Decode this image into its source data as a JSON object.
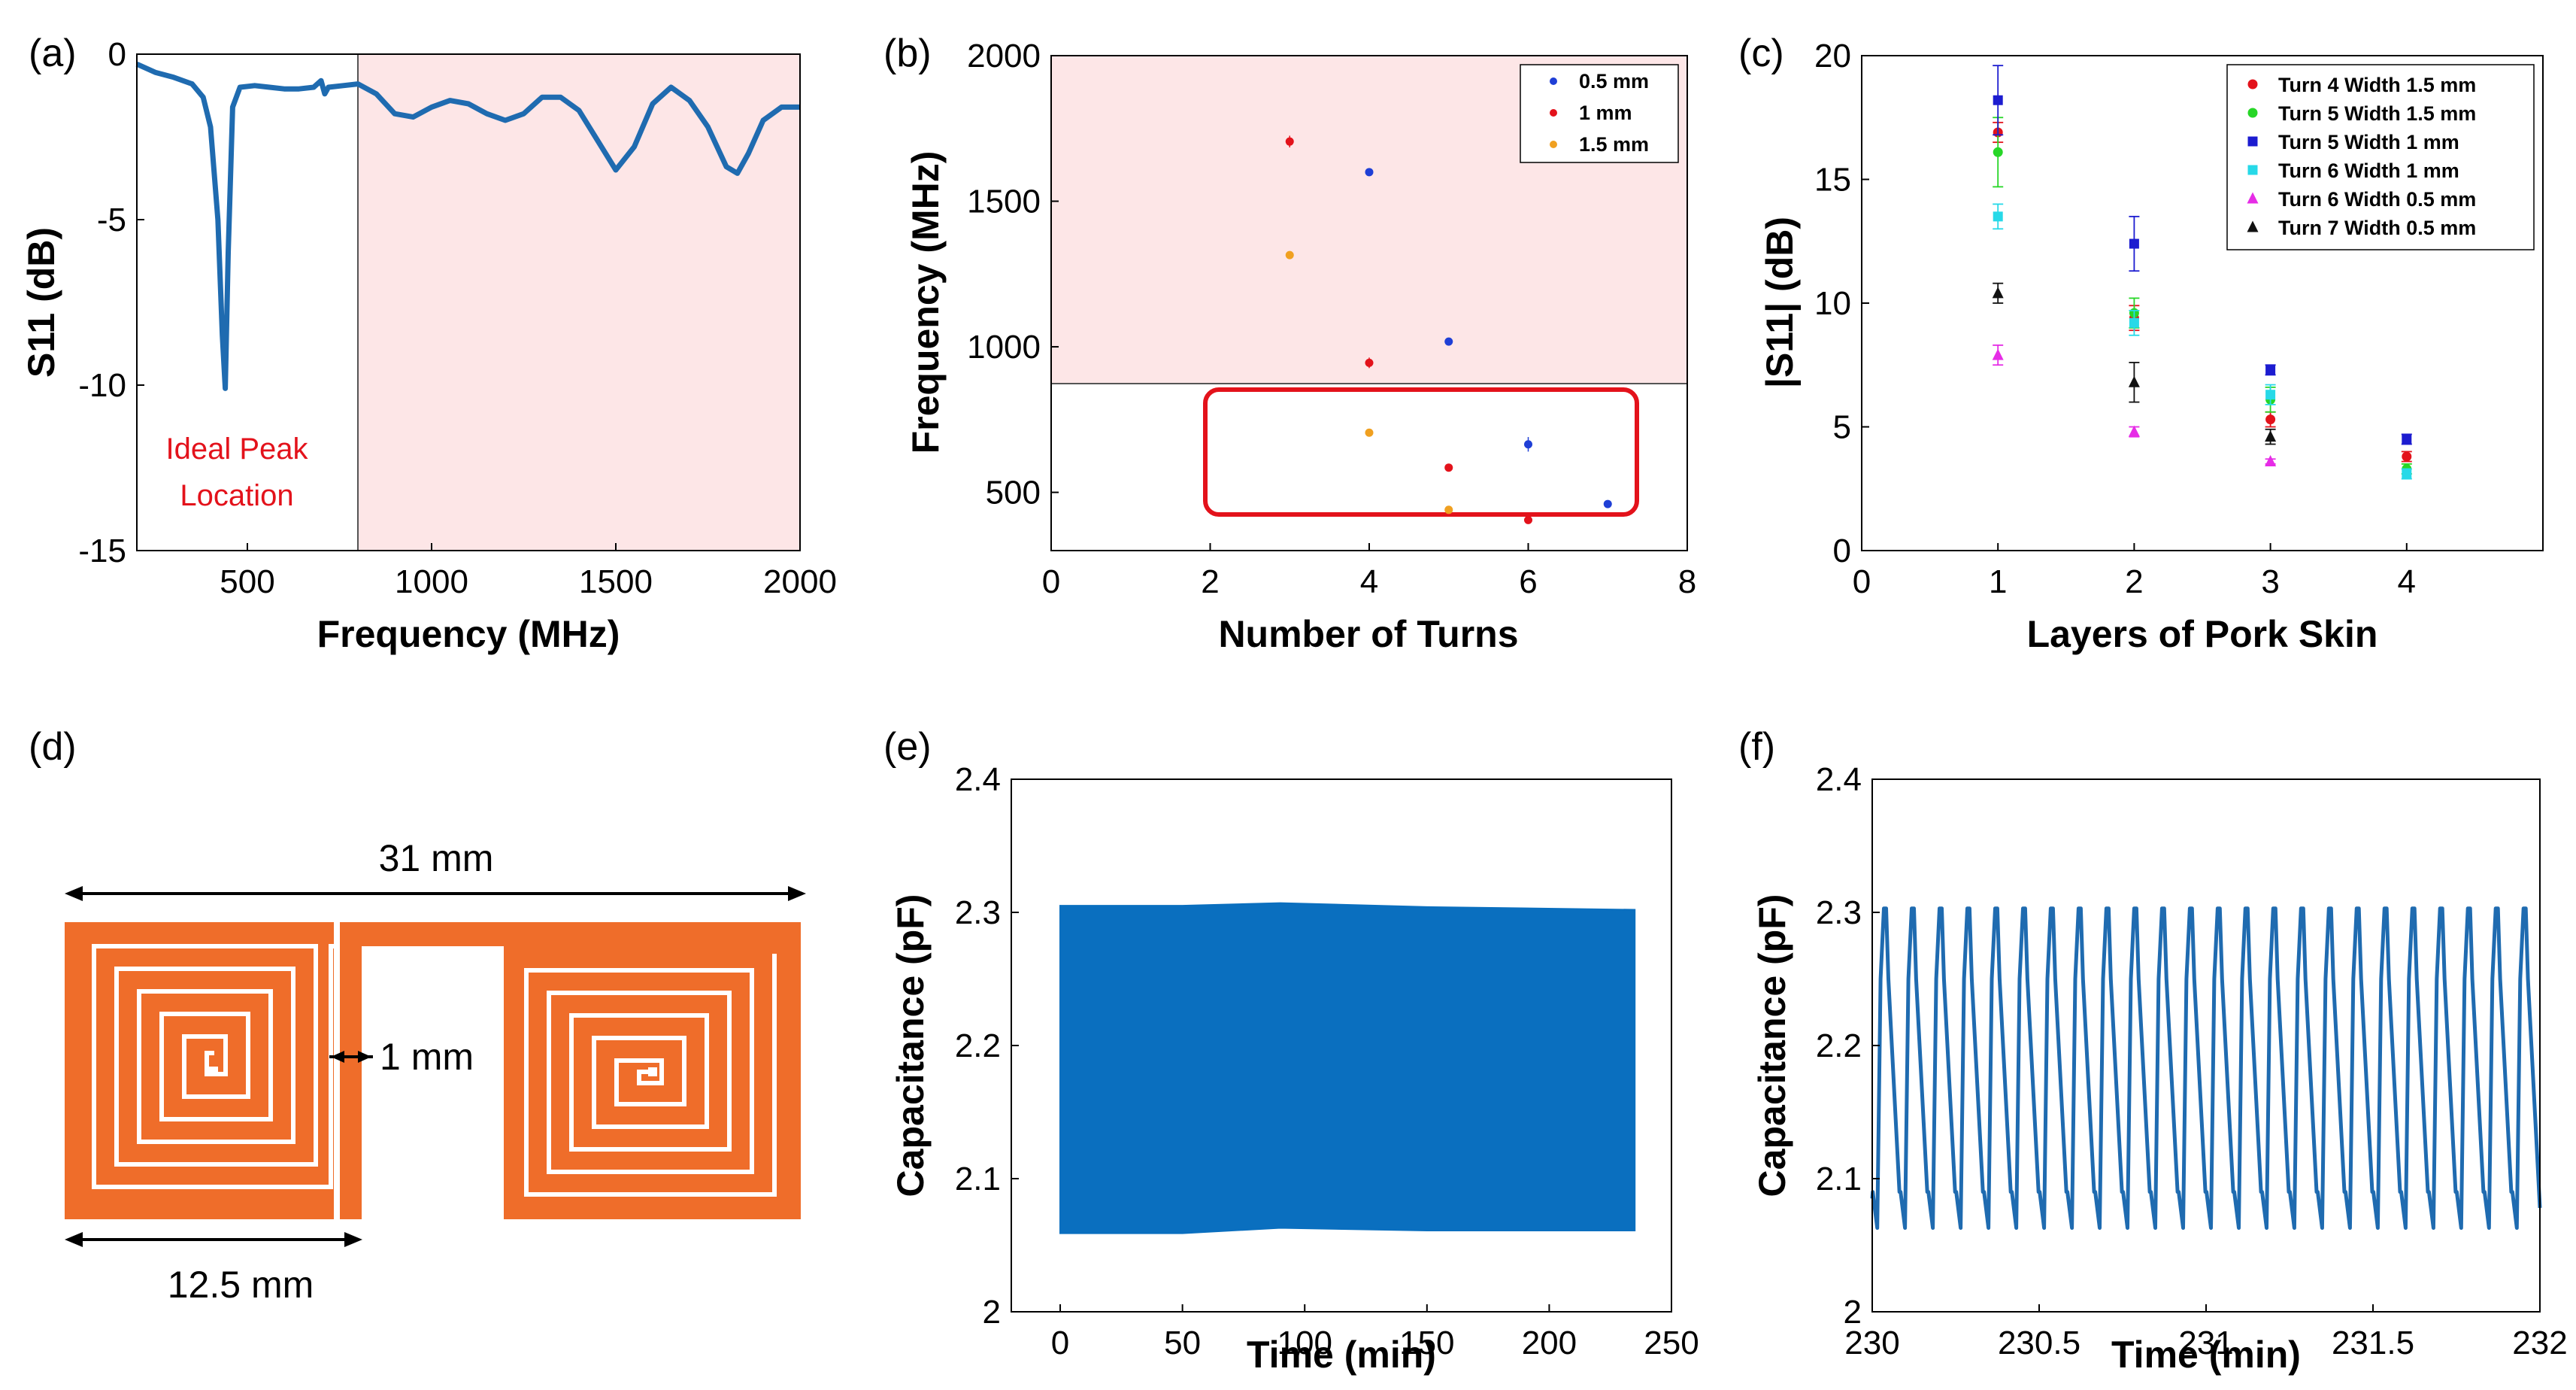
{
  "colors": {
    "axis": "#000000",
    "shade": "#fde6e7",
    "blue_line": "#1f6bb0",
    "dense_blue": "#0a6fbf",
    "highlight": "#e3121b",
    "orange": "#ef6d2a",
    "gap": "#ffffff"
  },
  "chart_data": [
    {
      "panel": "(a)",
      "type": "line",
      "xlabel": "Frequency (MHz)",
      "ylabel": "S11 (dB)",
      "xlim": [
        200,
        2000
      ],
      "ylim": [
        -15,
        0
      ],
      "xticks": [
        500,
        1000,
        1500,
        2000
      ],
      "yticks": [
        0,
        -5,
        -10,
        -15
      ],
      "shaded_region": {
        "x": [
          800,
          2000
        ]
      },
      "annotation": [
        "Ideal Peak",
        "Location"
      ],
      "series": [
        {
          "name": "S11",
          "x": [
            200,
            250,
            300,
            350,
            380,
            400,
            420,
            432,
            440,
            448,
            460,
            480,
            520,
            560,
            600,
            640,
            680,
            700,
            710,
            720,
            760,
            800,
            850,
            900,
            950,
            1000,
            1050,
            1100,
            1150,
            1200,
            1250,
            1300,
            1350,
            1400,
            1450,
            1500,
            1550,
            1600,
            1650,
            1700,
            1750,
            1800,
            1830,
            1860,
            1900,
            1950,
            2000
          ],
          "y": [
            -0.3,
            -0.55,
            -0.7,
            -0.9,
            -1.3,
            -2.2,
            -5.0,
            -8.5,
            -10.1,
            -6.0,
            -1.6,
            -1.0,
            -0.95,
            -1.0,
            -1.05,
            -1.05,
            -1.0,
            -0.8,
            -1.2,
            -1.0,
            -0.95,
            -0.9,
            -1.2,
            -1.8,
            -1.9,
            -1.6,
            -1.4,
            -1.5,
            -1.8,
            -2.0,
            -1.8,
            -1.3,
            -1.3,
            -1.7,
            -2.6,
            -3.5,
            -2.8,
            -1.5,
            -1.0,
            -1.4,
            -2.2,
            -3.4,
            -3.6,
            -3.0,
            -2.0,
            -1.6,
            -1.6
          ]
        }
      ]
    },
    {
      "panel": "(b)",
      "type": "scatter",
      "xlabel": "Number of Turns",
      "ylabel": "Frequency (MHz)",
      "xlim": [
        0,
        8
      ],
      "ylim": [
        300,
        2000
      ],
      "xticks": [
        0,
        2,
        4,
        6,
        8
      ],
      "yticks": [
        500,
        1000,
        1500,
        2000
      ],
      "shaded_region": {
        "y": [
          800,
          2000
        ]
      },
      "highlight_box": {
        "x": [
          2,
          7.4
        ],
        "y": [
          330,
          790
        ]
      },
      "legend_position": "top-right",
      "series": [
        {
          "name": "0.5 mm",
          "color": "#1f3fd6",
          "x": [
            4,
            5,
            6,
            7
          ],
          "y": [
            1600,
            1018,
            665,
            460
          ],
          "err": [
            12,
            10,
            25,
            10
          ]
        },
        {
          "name": "1 mm",
          "color": "#e3121b",
          "x": [
            3,
            4,
            5,
            6
          ],
          "y": [
            1705,
            945,
            585,
            405
          ],
          "err": [
            20,
            18,
            12,
            10
          ]
        },
        {
          "name": "1.5 mm",
          "color": "#f0a020",
          "x": [
            3,
            4,
            5
          ],
          "y": [
            1315,
            705,
            440
          ],
          "err": [
            10,
            10,
            10
          ]
        }
      ]
    },
    {
      "panel": "(c)",
      "type": "scatter",
      "xlabel": "Layers of Pork Skin",
      "ylabel": "|S11| (dB)",
      "xlim": [
        0,
        5
      ],
      "ylim": [
        0,
        20
      ],
      "xticks": [
        0,
        1,
        2,
        3,
        4
      ],
      "yticks": [
        0,
        5,
        10,
        15,
        20
      ],
      "legend_position": "top-right",
      "series": [
        {
          "name": "Turn 4 Width 1.5 mm",
          "color": "#e3121b",
          "marker": "circle",
          "x": [
            1,
            2,
            3,
            4
          ],
          "y": [
            16.9,
            9.4,
            5.3,
            3.8
          ],
          "err": [
            0.4,
            0.5,
            0.3,
            0.2
          ]
        },
        {
          "name": "Turn 5 Width 1.5 mm",
          "color": "#27d627",
          "marker": "circle",
          "x": [
            1,
            2,
            3,
            4
          ],
          "y": [
            16.1,
            9.6,
            6.1,
            3.3
          ],
          "err": [
            1.4,
            0.6,
            0.5,
            0.2
          ]
        },
        {
          "name": "Turn 5 Width 1 mm",
          "color": "#1c1cd0",
          "marker": "square",
          "x": [
            1,
            2,
            3,
            4
          ],
          "y": [
            18.2,
            12.4,
            7.3,
            4.5
          ],
          "err": [
            1.4,
            1.1,
            0.2,
            0.2
          ]
        },
        {
          "name": "Turn 6 Width 1 mm",
          "color": "#27d9e8",
          "marker": "square",
          "x": [
            1,
            2,
            3,
            4
          ],
          "y": [
            13.5,
            9.2,
            6.3,
            3.1
          ],
          "err": [
            0.5,
            0.5,
            0.4,
            0.2
          ]
        },
        {
          "name": "Turn 6 Width 0.5 mm",
          "color": "#e62ce6",
          "marker": "triangle",
          "x": [
            1,
            2,
            3
          ],
          "y": [
            7.9,
            4.8,
            3.6
          ],
          "err": [
            0.4,
            0.2,
            0.1
          ]
        },
        {
          "name": "Turn 7 Width 0.5 mm",
          "color": "#111111",
          "marker": "triangle",
          "x": [
            1,
            2,
            3
          ],
          "y": [
            10.4,
            6.8,
            4.6
          ],
          "err": [
            0.4,
            0.8,
            0.3
          ]
        }
      ]
    },
    {
      "panel": "(e)",
      "type": "area",
      "xlabel": "Time (min)",
      "ylabel": "Capacitance (pF)",
      "xlim": [
        -20,
        250
      ],
      "ylim": [
        2,
        2.4
      ],
      "xticks": [
        0,
        50,
        100,
        150,
        200,
        250
      ],
      "yticks": [
        2,
        2.1,
        2.2,
        2.3,
        2.4
      ],
      "band": {
        "x": [
          0,
          50,
          90,
          150,
          235
        ],
        "upper": [
          2.305,
          2.305,
          2.307,
          2.304,
          2.302
        ],
        "lower": [
          2.059,
          2.059,
          2.063,
          2.061,
          2.061
        ]
      }
    },
    {
      "panel": "(f)",
      "type": "line",
      "xlabel": "Time (min)",
      "ylabel": "Capacitance (pF)",
      "xlim": [
        230,
        232
      ],
      "ylim": [
        2,
        2.4
      ],
      "xticks": [
        230,
        230.5,
        231,
        231.5,
        232
      ],
      "xtick_labels": [
        "230",
        "230.5",
        "231",
        "231.5",
        "232"
      ],
      "yticks": [
        2,
        2.1,
        2.2,
        2.3,
        2.4
      ],
      "waveform": {
        "start": 230.0,
        "period": 0.0833,
        "cycles": 24,
        "max": 2.303,
        "min": 2.063,
        "high_knee": 2.25,
        "low_knee": 2.09
      }
    }
  ],
  "panels": {
    "a": {
      "label": "(a)"
    },
    "b": {
      "label": "(b)"
    },
    "c": {
      "label": "(c)"
    },
    "d": {
      "label": "(d)"
    },
    "e": {
      "label": "(e)"
    },
    "f": {
      "label": "(f)"
    }
  },
  "diagram": {
    "total_width_label": "31 mm",
    "gap_label": "1 mm",
    "coil_width_label": "12.5 mm"
  }
}
